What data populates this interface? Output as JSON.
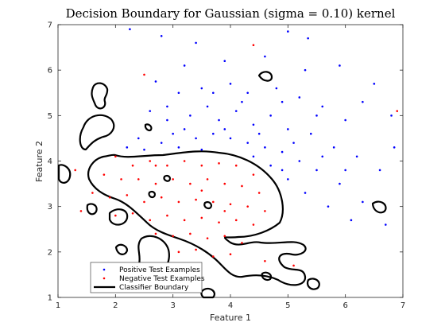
{
  "chart_data": {
    "type": "scatter",
    "title": "Decision Boundary for Gaussian (sigma = 0.10) kernel",
    "xlabel": "Feature 1",
    "ylabel": "Feature 2",
    "xlim": [
      1,
      7
    ],
    "ylim": [
      1,
      7
    ],
    "xticks": [
      "1",
      "2",
      "3",
      "4",
      "5",
      "6",
      "7"
    ],
    "yticks": [
      "1",
      "2",
      "3",
      "4",
      "5",
      "6",
      "7"
    ],
    "grid": false,
    "legend_position": "bottom-left",
    "series": [
      {
        "name": "Positive Test Examples",
        "marker": "dot",
        "color": "#0000ff",
        "points": [
          [
            2.25,
            6.9
          ],
          [
            2.8,
            6.75
          ],
          [
            3.4,
            6.6
          ],
          [
            5.0,
            6.85
          ],
          [
            5.35,
            6.7
          ],
          [
            3.2,
            6.1
          ],
          [
            3.9,
            6.2
          ],
          [
            4.6,
            6.3
          ],
          [
            5.3,
            6.0
          ],
          [
            5.9,
            6.1
          ],
          [
            6.5,
            5.7
          ],
          [
            6.3,
            5.3
          ],
          [
            2.7,
            5.75
          ],
          [
            3.1,
            5.5
          ],
          [
            3.5,
            5.6
          ],
          [
            4.0,
            5.7
          ],
          [
            4.3,
            5.5
          ],
          [
            4.8,
            5.6
          ],
          [
            5.2,
            5.4
          ],
          [
            5.6,
            5.2
          ],
          [
            6.0,
            4.9
          ],
          [
            6.8,
            5.0
          ],
          [
            2.6,
            5.1
          ],
          [
            2.9,
            4.9
          ],
          [
            3.3,
            5.0
          ],
          [
            3.6,
            5.2
          ],
          [
            3.8,
            4.9
          ],
          [
            4.1,
            5.1
          ],
          [
            4.4,
            4.8
          ],
          [
            4.7,
            5.0
          ],
          [
            5.0,
            4.7
          ],
          [
            5.4,
            4.6
          ],
          [
            5.8,
            4.3
          ],
          [
            6.2,
            4.1
          ],
          [
            6.6,
            3.8
          ],
          [
            2.4,
            4.5
          ],
          [
            2.8,
            4.4
          ],
          [
            3.0,
            4.6
          ],
          [
            3.4,
            4.5
          ],
          [
            3.7,
            4.6
          ],
          [
            4.0,
            4.5
          ],
          [
            4.3,
            4.4
          ],
          [
            4.6,
            4.3
          ],
          [
            4.9,
            4.2
          ],
          [
            5.2,
            4.0
          ],
          [
            5.5,
            3.8
          ],
          [
            5.9,
            3.5
          ],
          [
            6.3,
            3.1
          ],
          [
            2.2,
            4.3
          ],
          [
            2.5,
            4.25
          ],
          [
            3.1,
            4.3
          ],
          [
            3.5,
            4.25
          ],
          [
            4.7,
            3.9
          ],
          [
            5.0,
            3.6
          ],
          [
            5.3,
            3.3
          ],
          [
            5.7,
            3.0
          ],
          [
            6.1,
            2.7
          ],
          [
            6.7,
            2.6
          ],
          [
            4.9,
            3.8
          ],
          [
            5.1,
            4.4
          ],
          [
            4.5,
            4.6
          ],
          [
            3.9,
            4.7
          ],
          [
            3.2,
            4.7
          ],
          [
            4.2,
            5.3
          ],
          [
            4.9,
            5.3
          ],
          [
            5.5,
            5.0
          ],
          [
            3.7,
            5.5
          ],
          [
            2.9,
            5.2
          ],
          [
            5.6,
            4.1
          ],
          [
            6.0,
            3.8
          ],
          [
            4.4,
            4.1
          ],
          [
            6.85,
            4.3
          ]
        ]
      },
      {
        "name": "Negative Test Examples",
        "marker": "dot",
        "color": "#ff0000",
        "points": [
          [
            2.0,
            4.1
          ],
          [
            2.3,
            3.9
          ],
          [
            2.6,
            4.0
          ],
          [
            2.9,
            3.9
          ],
          [
            3.2,
            4.0
          ],
          [
            3.5,
            3.9
          ],
          [
            3.8,
            3.95
          ],
          [
            4.1,
            3.9
          ],
          [
            4.4,
            3.7
          ],
          [
            1.8,
            3.7
          ],
          [
            2.1,
            3.6
          ],
          [
            2.4,
            3.6
          ],
          [
            2.7,
            3.5
          ],
          [
            3.0,
            3.6
          ],
          [
            3.3,
            3.5
          ],
          [
            3.6,
            3.6
          ],
          [
            3.9,
            3.5
          ],
          [
            4.2,
            3.45
          ],
          [
            4.5,
            3.3
          ],
          [
            1.6,
            3.3
          ],
          [
            1.9,
            3.2
          ],
          [
            2.2,
            3.25
          ],
          [
            2.5,
            3.1
          ],
          [
            2.8,
            3.2
          ],
          [
            3.1,
            3.1
          ],
          [
            3.4,
            3.15
          ],
          [
            3.7,
            3.1
          ],
          [
            4.0,
            3.05
          ],
          [
            4.3,
            3.0
          ],
          [
            4.6,
            2.9
          ],
          [
            2.0,
            2.8
          ],
          [
            2.3,
            2.85
          ],
          [
            2.6,
            2.7
          ],
          [
            2.9,
            2.8
          ],
          [
            3.2,
            2.7
          ],
          [
            3.5,
            2.75
          ],
          [
            3.8,
            2.65
          ],
          [
            4.1,
            2.7
          ],
          [
            4.4,
            2.6
          ],
          [
            2.7,
            2.4
          ],
          [
            3.0,
            2.35
          ],
          [
            3.3,
            2.4
          ],
          [
            3.6,
            2.3
          ],
          [
            3.9,
            2.35
          ],
          [
            4.2,
            2.2
          ],
          [
            3.1,
            2.0
          ],
          [
            3.4,
            2.05
          ],
          [
            3.7,
            1.9
          ],
          [
            4.0,
            1.95
          ],
          [
            4.6,
            1.8
          ],
          [
            5.1,
            1.7
          ],
          [
            1.4,
            2.9
          ],
          [
            1.3,
            3.8
          ],
          [
            1.7,
            1.5
          ],
          [
            2.5,
            5.9
          ],
          [
            4.4,
            6.55
          ],
          [
            6.9,
            5.1
          ],
          [
            2.7,
            3.9
          ],
          [
            3.5,
            3.35
          ],
          [
            3.9,
            2.9
          ]
        ]
      },
      {
        "name": "Classifier Boundary",
        "marker": "line",
        "color": "#000000"
      }
    ]
  }
}
